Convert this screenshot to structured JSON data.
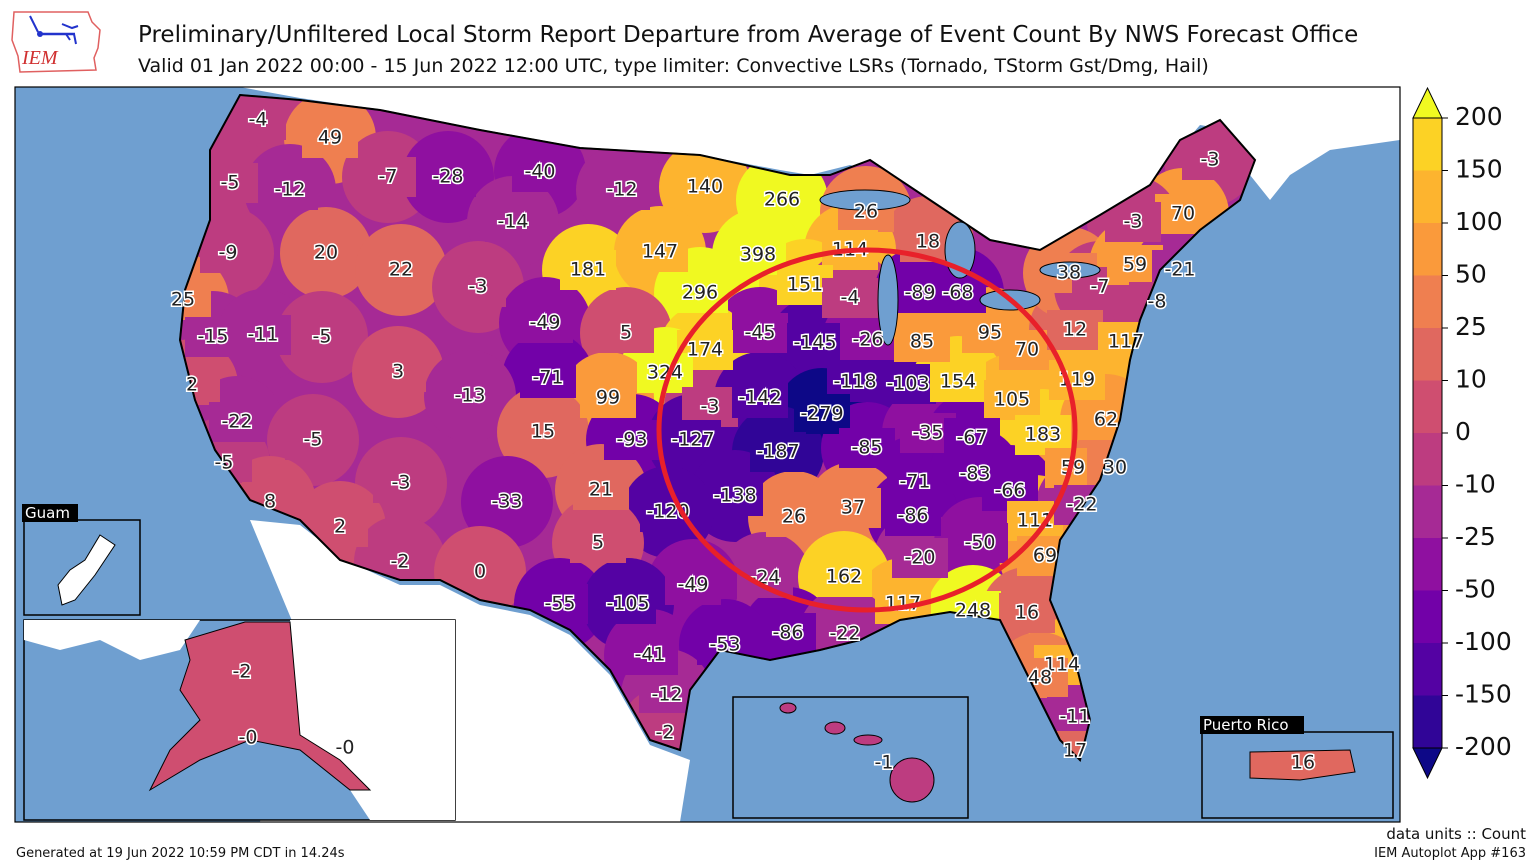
{
  "header": {
    "logo_text": "IEM",
    "title": "Preliminary/Unfiltered Local Storm Report Departure from Average of Event Count By NWS Forecast Office",
    "subtitle": "Valid 01 Jan 2022 00:00 - 15 Jun 2022 12:00 UTC, type limiter: Convective LSRs (Tornado, TStorm Gst/Dmg, Hail)"
  },
  "footer": {
    "generated": "Generated at 19 Jun 2022 10:59 PM CDT in 14.24s",
    "data_units": "data units :: Count",
    "app": "IEM Autoplot App #163"
  },
  "colors": {
    "ocean": "#6f9fd0",
    "foreign_land": "#ffffff",
    "annotation_circle": "#e8202a"
  },
  "colorbar": {
    "ticks": [
      "200",
      "150",
      "100",
      "50",
      "25",
      "10",
      "0",
      "-10",
      "-25",
      "-50",
      "-100",
      "-150",
      "-200"
    ],
    "levels": [
      -200,
      -150,
      -100,
      -50,
      -25,
      -10,
      0,
      10,
      25,
      50,
      100,
      150,
      200
    ],
    "bin_colors": [
      "#300597",
      "#5402a3",
      "#7201a8",
      "#8f10a0",
      "#a62a95",
      "#bd3c80",
      "#cf4e70",
      "#e0685f",
      "#ef7f50",
      "#fa9a3b",
      "#fdb42f",
      "#fcd225"
    ],
    "under_color": "#0d0887",
    "over_color": "#f0f921",
    "extend": "both"
  },
  "insets": {
    "guam": {
      "label": "Guam"
    },
    "puerto_rico": {
      "label": "Puerto Rico"
    },
    "alaska": {
      "label": ""
    },
    "hawaii": {
      "label": ""
    }
  },
  "wfo_values": [
    "-4",
    "49",
    "-7",
    "-28",
    "-40",
    "-12",
    "140",
    "266",
    "-5",
    "-12",
    "-14",
    "26",
    "18",
    "114",
    "-9",
    "20",
    "22",
    "181",
    "147",
    "398",
    "-3",
    "296",
    "151",
    "-4",
    "-89",
    "-68",
    "25",
    "-49",
    "5",
    "-45",
    "-145",
    "-26",
    "85",
    "95",
    "70",
    "12",
    "117",
    "-15",
    "-11",
    "-5",
    "174",
    "3",
    "-71",
    "324",
    "-118",
    "-103",
    "154",
    "119",
    "2",
    "-13",
    "99",
    "-3",
    "-142",
    "-279",
    "105",
    "-22",
    "15",
    "-93",
    "-127",
    "-187",
    "-85",
    "-35",
    "-67",
    "183",
    "62",
    "-5",
    "-5",
    "-3",
    "-33",
    "21",
    "59",
    "30",
    "8",
    "-71",
    "-83",
    "-66",
    "-138",
    "-120",
    "26",
    "37",
    "-86",
    "111",
    "-22",
    "2",
    "5",
    "-2",
    "0",
    "-20",
    "-50",
    "69",
    "-24",
    "162",
    "-49",
    "-55",
    "-105",
    "117",
    "248",
    "16",
    "-86",
    "-22",
    "-41",
    "-53",
    "114",
    "48",
    "-12",
    "-2",
    "-11",
    "17",
    "-3",
    "70",
    "-3",
    "38",
    "-7",
    "59",
    "-21",
    "-8"
  ],
  "inset_values": {
    "alaska": [
      "-2",
      "-0",
      "-0"
    ],
    "hawaii": [
      "-1"
    ],
    "puerto_rico": [
      "16"
    ]
  }
}
